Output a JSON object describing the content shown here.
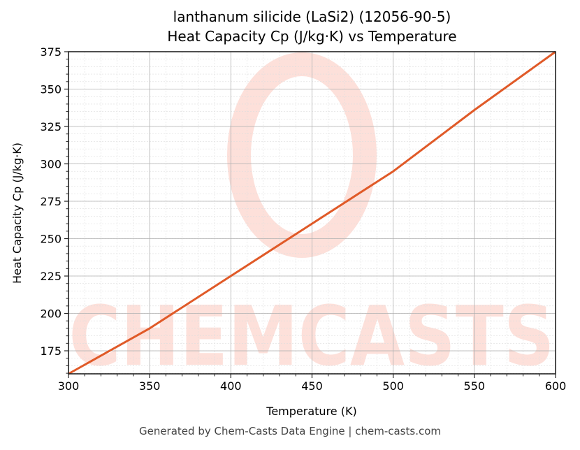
{
  "chart_data": {
    "type": "line",
    "title": "lanthanum silicide (LaSi2) (12056-90-5)",
    "subtitle": "Heat Capacity Cp (J/kg·K) vs Temperature",
    "xlabel": "Temperature (K)",
    "ylabel": "Heat Capacity Cp (J/kg·K)",
    "xlim": [
      300,
      600
    ],
    "ylim": [
      159.6,
      375
    ],
    "x_ticks": [
      300,
      350,
      400,
      450,
      500,
      550,
      600
    ],
    "y_ticks": [
      175,
      200,
      225,
      250,
      275,
      300,
      325,
      350,
      375
    ],
    "grid": true,
    "minor_grid": true,
    "legend": null,
    "series": [
      {
        "name": "Heat Capacity Cp",
        "color": "#E05A28",
        "x": [
          300,
          350,
          400,
          450,
          500,
          550,
          600
        ],
        "values": [
          159.6,
          190,
          225,
          260,
          295,
          336,
          375
        ]
      }
    ],
    "watermark": "CHEMCASTS",
    "watermark_color": "#FDE0DA"
  },
  "header": {
    "title": "lanthanum silicide (LaSi2) (12056-90-5)",
    "subtitle": "Heat Capacity Cp (J/kg·K) vs Temperature"
  },
  "axes": {
    "xlabel": "Temperature (K)",
    "ylabel": "Heat Capacity Cp (J/kg·K)"
  },
  "footer": {
    "text": "Generated by Chem-Casts Data Engine | chem-casts.com"
  }
}
